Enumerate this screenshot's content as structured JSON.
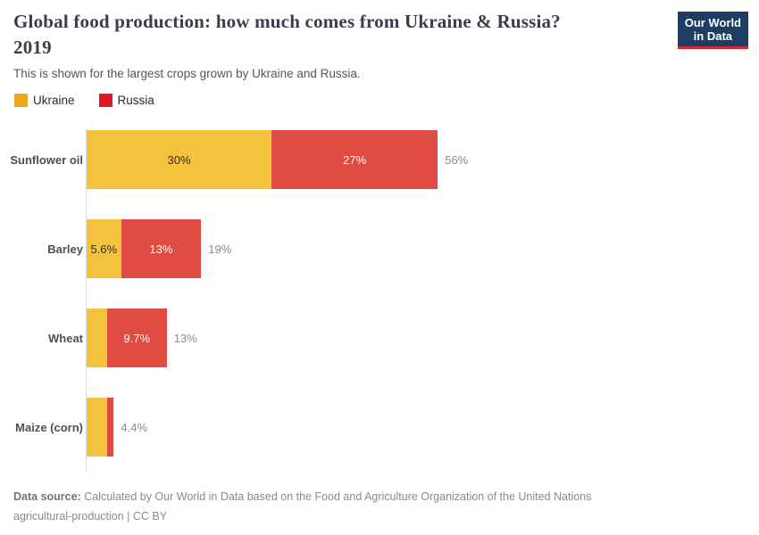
{
  "header": {
    "title_line1": "Global food production: how much comes from Ukraine & Russia?",
    "title_line2": "2019",
    "subtitle": "This is shown for the largest crops grown by Ukraine and Russia."
  },
  "logo": {
    "line1": "Our World",
    "line2": "in Data"
  },
  "legend": {
    "items": [
      {
        "label": "Ukraine",
        "color": "#EBA81C"
      },
      {
        "label": "Russia",
        "color": "#DB1A21"
      }
    ]
  },
  "chart_data": {
    "type": "bar",
    "orientation": "horizontal",
    "stacked": true,
    "title": "Global food production: how much comes from Ukraine & Russia? 2019",
    "categories": [
      "Sunflower oil",
      "Barley",
      "Wheat",
      "Maize (corn)"
    ],
    "series": [
      {
        "name": "Ukraine",
        "color": "#F3C33E",
        "values": [
          30,
          5.6,
          3.3,
          3.3
        ]
      },
      {
        "name": "Russia",
        "color": "#E04B43",
        "values": [
          27,
          13,
          9.7,
          1.1
        ]
      }
    ],
    "segment_labels": [
      [
        "30%",
        "27%"
      ],
      [
        "5.6%",
        "13%"
      ],
      [
        "",
        "9.7%"
      ],
      [
        "",
        ""
      ]
    ],
    "totals": [
      "56%",
      "19%",
      "13%",
      "4.4%"
    ],
    "xlim": [
      0,
      60
    ],
    "grid": false,
    "legend_position": "top-left",
    "value_unit": "%"
  },
  "colors": {
    "axis": "#dadada",
    "logo_bg": "#1d3d63",
    "logo_underline": "#e0262c"
  },
  "footer": {
    "source_label": "Data source:",
    "line1": "Calculated by Our World in Data based on the Food and Agriculture Organization of the United Nations",
    "line2": "agricultural-production | CC BY"
  }
}
